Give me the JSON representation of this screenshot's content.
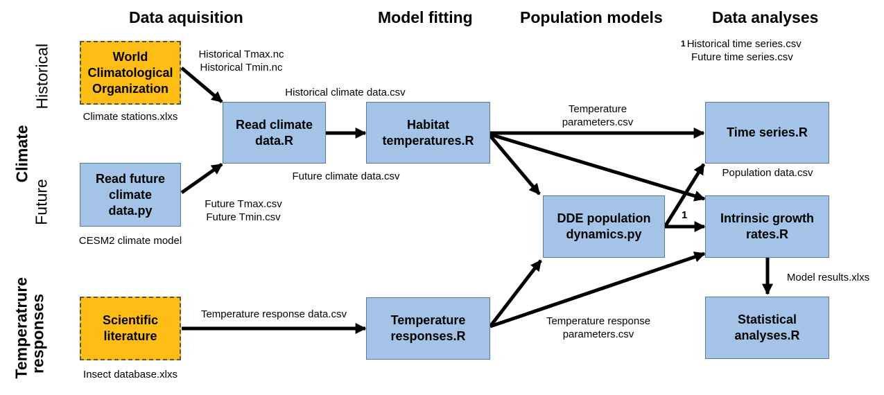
{
  "headers": {
    "data_acquisition": "Data aquisition",
    "model_fitting": "Model fitting",
    "population_models": "Population models",
    "data_analyses": "Data analyses"
  },
  "side_labels": {
    "climate": "Climate",
    "historical": "Historical",
    "future": "Future",
    "temperature_responses_1": "Temperatrure",
    "temperature_responses_2": "responses"
  },
  "boxes": {
    "wco": {
      "line1": "World",
      "line2": "Climatological",
      "line3": "Organization"
    },
    "read_future": {
      "line1": "Read future",
      "line2": "climate",
      "line3": "data.py"
    },
    "read_climate": {
      "line1": "Read climate",
      "line2": "data.R"
    },
    "habitat": {
      "line1": "Habitat",
      "line2": "temperatures.R"
    },
    "sci_lit": {
      "line1": "Scientific",
      "line2": "literature"
    },
    "temp_resp": {
      "line1": "Temperature",
      "line2": "responses.R"
    },
    "dde": {
      "line1": "DDE population",
      "line2": "dynamics.py"
    },
    "time_series": {
      "line1": "Time series.R"
    },
    "growth": {
      "line1": "Intrinsic growth",
      "line2": "rates.R"
    },
    "stats": {
      "line1": "Statistical",
      "line2": "analyses.R"
    }
  },
  "labels": {
    "hist_nc_1": "Historical Tmax.nc",
    "hist_nc_2": "Historical Tmin.nc",
    "climate_stations": "Climate stations.xlxs",
    "hist_climate_csv": "Historical climate data.csv",
    "future_climate_csv": "Future climate data.csv",
    "future_csv_1": "Future Tmax.csv",
    "future_csv_2": "Future Tmin.csv",
    "cesm2": "CESM2 climate model",
    "temp_params_1": "Temperature",
    "temp_params_2": "parameters.csv",
    "population_data": "Population data.csv",
    "note_marker": "1",
    "note_1": "Historical time series.csv",
    "note_2": "Future time series.csv",
    "arrow_marker": "1",
    "temp_resp_data": "Temperature  response data.csv",
    "temp_resp_params_1": "Temperature response",
    "temp_resp_params_2": "parameters.csv",
    "model_results": "Model results.xlxs",
    "insect_db": "Insect database.xlxs"
  },
  "colors": {
    "box_blue": "#a3c4e6",
    "box_orange": "#fdbd15",
    "arrow": "#000000"
  }
}
